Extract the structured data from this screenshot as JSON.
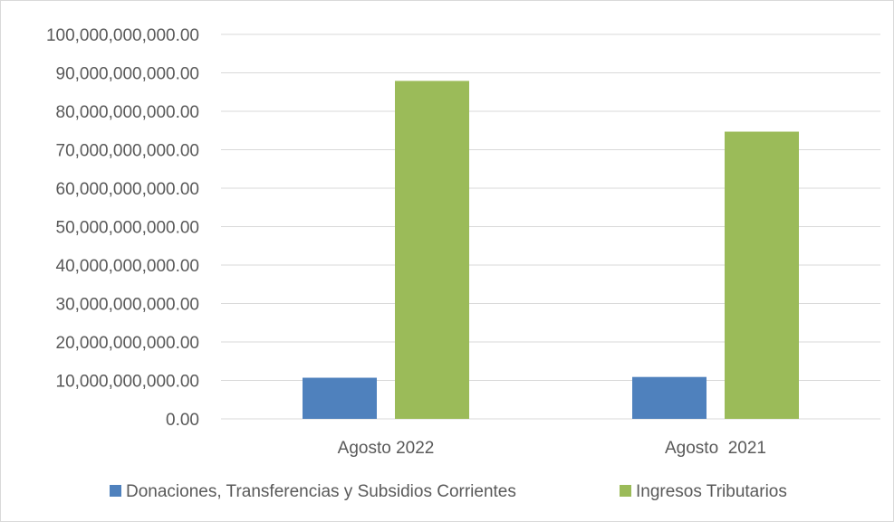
{
  "chart_data": {
    "type": "bar",
    "title": "",
    "xlabel": "",
    "ylabel": "",
    "categories": [
      "Agosto 2022",
      "Agosto  2021"
    ],
    "series": [
      {
        "name": "Donaciones, Transferencias y Subsidios Corrientes",
        "color": "#4f81bd",
        "values": [
          10700000000,
          10900000000
        ]
      },
      {
        "name": "Ingresos Tributarios",
        "color": "#9bbb59",
        "values": [
          87900000000,
          74700000000
        ]
      }
    ],
    "ylim": [
      0,
      100000000000
    ],
    "yticks": [
      0,
      10000000000,
      20000000000,
      30000000000,
      40000000000,
      50000000000,
      60000000000,
      70000000000,
      80000000000,
      90000000000,
      100000000000
    ],
    "ytick_labels": [
      "0.00",
      "10,000,000,000.00",
      "20,000,000,000.00",
      "30,000,000,000.00",
      "40,000,000,000.00",
      "50,000,000,000.00",
      "60,000,000,000.00",
      "70,000,000,000.00",
      "80,000,000,000.00",
      "90,000,000,000.00",
      "100,000,000,000.00"
    ],
    "grid": true,
    "legend": "bottom"
  }
}
